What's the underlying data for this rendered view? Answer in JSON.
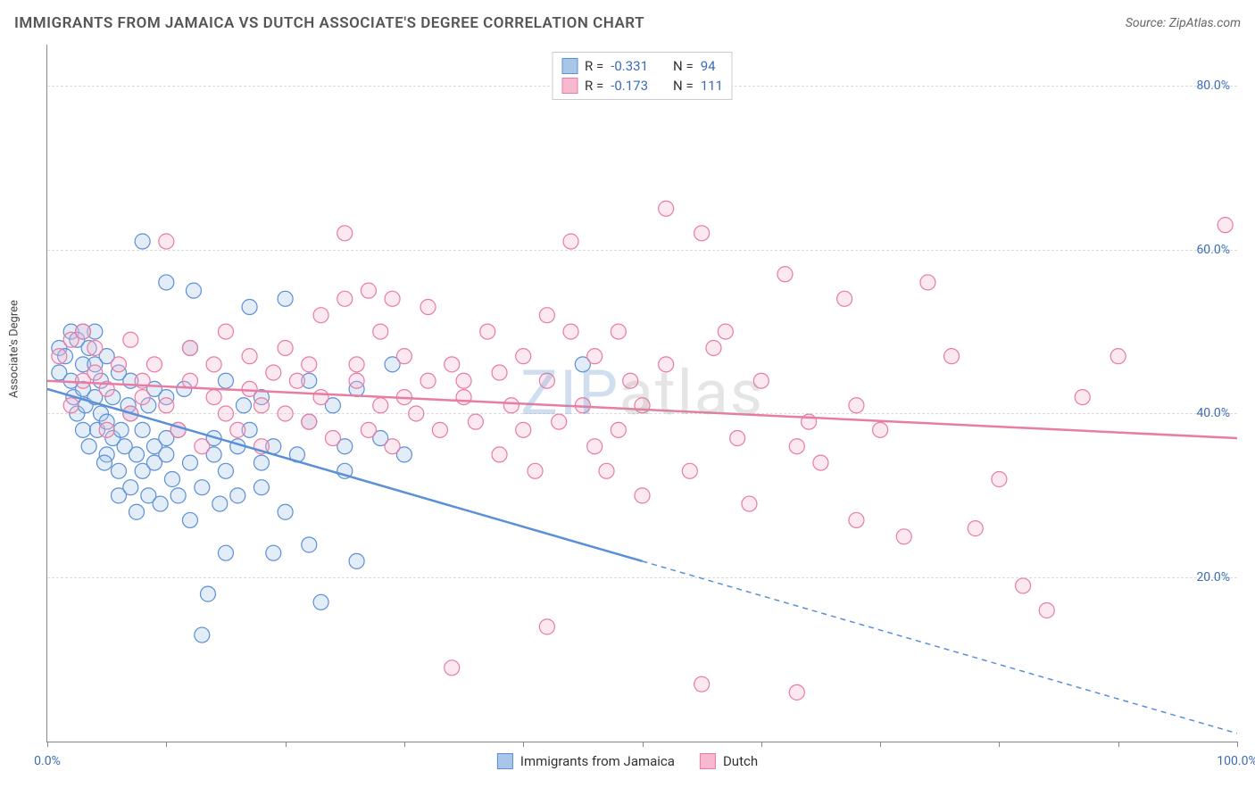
{
  "title": "IMMIGRANTS FROM JAMAICA VS DUTCH ASSOCIATE'S DEGREE CORRELATION CHART",
  "source": "Source: ZipAtlas.com",
  "y_axis_label": "Associate's Degree",
  "watermark": {
    "part1": "ZIP",
    "part2": "atlas"
  },
  "chart": {
    "type": "scatter",
    "xlim": [
      0,
      100
    ],
    "ylim": [
      0,
      85
    ],
    "x_ticks": [
      0,
      10,
      20,
      30,
      40,
      50,
      60,
      70,
      80,
      90,
      100
    ],
    "x_tick_labels": {
      "0": "0.0%",
      "100": "100.0%"
    },
    "y_grid": [
      20,
      40,
      60,
      80
    ],
    "y_tick_labels": {
      "20": "20.0%",
      "40": "40.0%",
      "60": "60.0%",
      "80": "80.0%"
    },
    "grid_color": "#dddddd",
    "axis_color": "#888888",
    "background_color": "#ffffff",
    "tick_label_color": "#3b6db5",
    "marker_radius": 8.5,
    "marker_opacity": 0.32,
    "line_width": 2.5
  },
  "series": [
    {
      "name": "Immigrants from Jamaica",
      "color": "#5b8fd6",
      "fill": "#a9c6ea",
      "R": "-0.331",
      "N": "94",
      "trend": {
        "x1": 0,
        "y1": 43,
        "x2": 50,
        "y2": 22,
        "x_solid_end": 50,
        "x_dash_end": 100,
        "y_dash_end": 1
      },
      "points": [
        [
          1,
          48
        ],
        [
          1,
          45
        ],
        [
          1.5,
          47
        ],
        [
          2,
          50
        ],
        [
          2,
          44
        ],
        [
          2.2,
          42
        ],
        [
          2.5,
          49
        ],
        [
          2.5,
          40
        ],
        [
          3,
          46
        ],
        [
          3,
          43
        ],
        [
          3,
          38
        ],
        [
          3.2,
          41
        ],
        [
          3.5,
          48
        ],
        [
          3.5,
          36
        ],
        [
          4,
          50
        ],
        [
          4,
          42
        ],
        [
          4,
          46
        ],
        [
          4.2,
          38
        ],
        [
          4.5,
          44
        ],
        [
          4.5,
          40
        ],
        [
          5,
          35
        ],
        [
          5,
          39
        ],
        [
          5,
          47
        ],
        [
          5.5,
          37
        ],
        [
          5.5,
          42
        ],
        [
          6,
          30
        ],
        [
          6,
          33
        ],
        [
          6,
          45
        ],
        [
          6.2,
          38
        ],
        [
          6.5,
          36
        ],
        [
          7,
          40
        ],
        [
          7,
          31
        ],
        [
          7,
          44
        ],
        [
          7.5,
          28
        ],
        [
          7.5,
          35
        ],
        [
          8,
          33
        ],
        [
          8,
          38
        ],
        [
          8,
          61
        ],
        [
          8.5,
          30
        ],
        [
          8.5,
          41
        ],
        [
          9,
          36
        ],
        [
          9,
          34
        ],
        [
          9.5,
          29
        ],
        [
          10,
          35
        ],
        [
          10,
          42
        ],
        [
          10,
          37
        ],
        [
          10,
          56
        ],
        [
          10.5,
          32
        ],
        [
          11,
          38
        ],
        [
          11,
          30
        ],
        [
          11.5,
          43
        ],
        [
          12,
          34
        ],
        [
          12,
          27
        ],
        [
          12,
          48
        ],
        [
          12.3,
          55
        ],
        [
          13,
          31
        ],
        [
          13,
          13
        ],
        [
          13.5,
          18
        ],
        [
          14,
          35
        ],
        [
          14,
          37
        ],
        [
          14.5,
          29
        ],
        [
          15,
          44
        ],
        [
          15,
          23
        ],
        [
          15,
          33
        ],
        [
          16,
          30
        ],
        [
          16,
          36
        ],
        [
          16.5,
          41
        ],
        [
          17,
          53
        ],
        [
          17,
          38
        ],
        [
          18,
          34
        ],
        [
          18,
          31
        ],
        [
          18,
          42
        ],
        [
          19,
          23
        ],
        [
          19,
          36
        ],
        [
          20,
          54
        ],
        [
          20,
          28
        ],
        [
          21,
          35
        ],
        [
          22,
          39
        ],
        [
          22,
          24
        ],
        [
          22,
          44
        ],
        [
          23,
          17
        ],
        [
          24,
          41
        ],
        [
          25,
          33
        ],
        [
          25,
          36
        ],
        [
          26,
          43
        ],
        [
          26,
          22
        ],
        [
          28,
          37
        ],
        [
          29,
          46
        ],
        [
          30,
          35
        ],
        [
          45,
          46
        ],
        [
          3,
          50
        ],
        [
          4.8,
          34
        ],
        [
          6.8,
          41
        ],
        [
          9,
          43
        ]
      ]
    },
    {
      "name": "Dutch",
      "color": "#e87ca3",
      "fill": "#f6b9cf",
      "R": "-0.173",
      "N": "111",
      "trend": {
        "x1": 0,
        "y1": 44,
        "x2": 100,
        "y2": 37,
        "x_solid_end": 100
      },
      "points": [
        [
          1,
          47
        ],
        [
          2,
          41
        ],
        [
          2,
          49
        ],
        [
          3,
          44
        ],
        [
          3,
          50
        ],
        [
          4,
          45
        ],
        [
          4,
          48
        ],
        [
          5,
          43
        ],
        [
          5,
          38
        ],
        [
          6,
          46
        ],
        [
          7,
          40
        ],
        [
          7,
          49
        ],
        [
          8,
          44
        ],
        [
          8,
          42
        ],
        [
          9,
          46
        ],
        [
          10,
          41
        ],
        [
          10,
          61
        ],
        [
          11,
          38
        ],
        [
          12,
          44
        ],
        [
          12,
          48
        ],
        [
          13,
          36
        ],
        [
          14,
          42
        ],
        [
          14,
          46
        ],
        [
          15,
          40
        ],
        [
          15,
          50
        ],
        [
          16,
          38
        ],
        [
          17,
          47
        ],
        [
          17,
          43
        ],
        [
          18,
          41
        ],
        [
          18,
          36
        ],
        [
          19,
          45
        ],
        [
          20,
          48
        ],
        [
          20,
          40
        ],
        [
          21,
          44
        ],
        [
          22,
          39
        ],
        [
          22,
          46
        ],
        [
          23,
          52
        ],
        [
          23,
          42
        ],
        [
          24,
          37
        ],
        [
          25,
          54
        ],
        [
          25,
          62
        ],
        [
          26,
          44
        ],
        [
          26,
          46
        ],
        [
          27,
          38
        ],
        [
          27,
          55
        ],
        [
          28,
          41
        ],
        [
          28,
          50
        ],
        [
          29,
          54
        ],
        [
          29,
          36
        ],
        [
          30,
          42
        ],
        [
          30,
          47
        ],
        [
          31,
          40
        ],
        [
          32,
          53
        ],
        [
          32,
          44
        ],
        [
          33,
          38
        ],
        [
          34,
          46
        ],
        [
          34,
          9
        ],
        [
          35,
          42
        ],
        [
          35,
          44
        ],
        [
          36,
          39
        ],
        [
          37,
          50
        ],
        [
          38,
          35
        ],
        [
          38,
          45
        ],
        [
          39,
          41
        ],
        [
          40,
          47
        ],
        [
          40,
          38
        ],
        [
          41,
          33
        ],
        [
          42,
          52
        ],
        [
          42,
          44
        ],
        [
          43,
          39
        ],
        [
          44,
          50
        ],
        [
          44,
          61
        ],
        [
          45,
          41
        ],
        [
          46,
          47
        ],
        [
          46,
          36
        ],
        [
          47,
          33
        ],
        [
          48,
          50
        ],
        [
          48,
          38
        ],
        [
          49,
          44
        ],
        [
          50,
          41
        ],
        [
          50,
          30
        ],
        [
          52,
          46
        ],
        [
          52,
          65
        ],
        [
          54,
          33
        ],
        [
          55,
          62
        ],
        [
          56,
          48
        ],
        [
          57,
          50
        ],
        [
          58,
          37
        ],
        [
          59,
          29
        ],
        [
          60,
          44
        ],
        [
          62,
          57
        ],
        [
          63,
          36
        ],
        [
          64,
          39
        ],
        [
          65,
          34
        ],
        [
          67,
          54
        ],
        [
          68,
          41
        ],
        [
          68,
          27
        ],
        [
          70,
          38
        ],
        [
          72,
          25
        ],
        [
          74,
          56
        ],
        [
          76,
          47
        ],
        [
          78,
          26
        ],
        [
          80,
          32
        ],
        [
          82,
          19
        ],
        [
          84,
          16
        ],
        [
          87,
          42
        ],
        [
          90,
          47
        ],
        [
          99,
          63
        ],
        [
          42,
          14
        ],
        [
          55,
          7
        ],
        [
          63,
          6
        ]
      ]
    }
  ],
  "legend_bottom": [
    {
      "label": "Immigrants from Jamaica",
      "series": 0
    },
    {
      "label": "Dutch",
      "series": 1
    }
  ],
  "stat_labels": {
    "r": "R =",
    "n": "N ="
  }
}
